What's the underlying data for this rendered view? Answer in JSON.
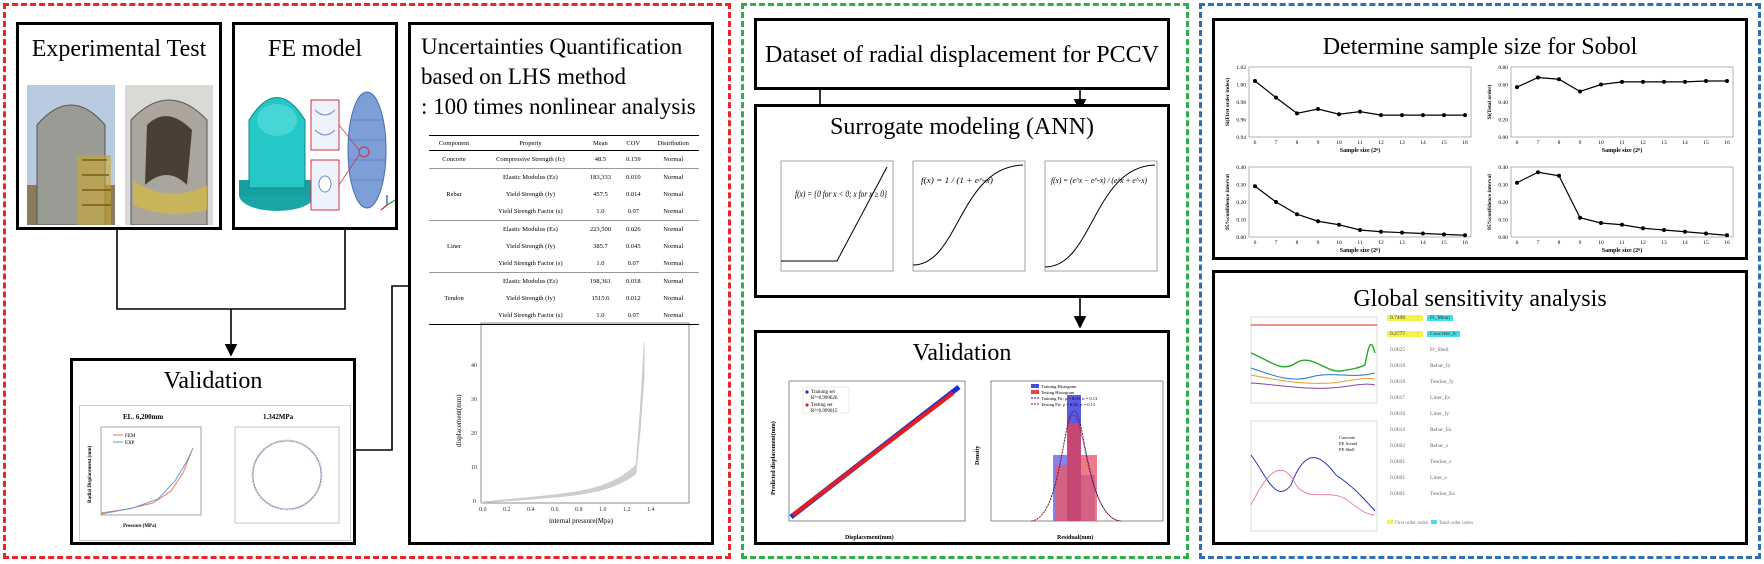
{
  "colors": {
    "red": "#e8262a",
    "green": "#2fae4a",
    "blue": "#2f6fba"
  },
  "boxes": {
    "experimental": "Experimental Test",
    "fe_model": "FE model",
    "validation_left": "Validation",
    "uq_line1": "Uncertainties Quantification",
    "uq_line2": "based on LHS method",
    "uq_line3": ": 100 times nonlinear analysis",
    "dataset": "Dataset of radial displacement for PCCV",
    "surrogate": "Surrogate modeling (ANN)",
    "validation_mid": "Validation",
    "sample_size": "Determine sample size for Sobol",
    "gsa": "Global sensitivity analysis"
  },
  "left_validation": {
    "plot1_title": "EL. 6,200mm",
    "plot1_xlabel": "Pressure (MPa)",
    "plot1_ylabel": "Radial Displacement (mm)",
    "legend": [
      "FEM",
      "EXP"
    ],
    "plot2_title": "1.342MPa"
  },
  "table": {
    "headers": [
      "Component",
      "Property",
      "Mean",
      "COV",
      "Distribution"
    ],
    "rows": [
      [
        "Concrete",
        "Compressive Strength (fc)",
        "48.5",
        "0.159",
        "Normal"
      ],
      [
        "",
        "Elastic Modulus (Es)",
        "183,333",
        "0.010",
        "Normal"
      ],
      [
        "Rebar",
        "Yield Strength (fy)",
        "457.5",
        "0.014",
        "Normal"
      ],
      [
        "",
        "Yield Strength Factor (s)",
        "1.0",
        "0.07",
        "Normal"
      ],
      [
        "",
        "Elastic Modulus (Es)",
        "223,500",
        "0.026",
        "Normal"
      ],
      [
        "Liner",
        "Yield Strength (fy)",
        "385.7",
        "0.045",
        "Normal"
      ],
      [
        "",
        "Yield Strength Factor (s)",
        "1.0",
        "0.07",
        "Normal"
      ],
      [
        "",
        "Elastic Modulus (Es)",
        "198,361",
        "0.018",
        "Normal"
      ],
      [
        "Tendon",
        "Yield Strength (fy)",
        "1515.6",
        "0.012",
        "Normal"
      ],
      [
        "",
        "Yield Strength Factor (s)",
        "1.0",
        "0.07",
        "Normal"
      ]
    ]
  },
  "uq_plot": {
    "xlabel": "internal pressure(Mpa)",
    "ylabel": "displacement(mm)"
  },
  "activation": {
    "relu_formula": "f(x) = {0 for x < 0; x for x ≥ 0}",
    "sigmoid_formula": "f(x) = 1 / (1 + e^-x)",
    "tanh_formula": "f(x) = (e^x − e^-x) / (e^x + e^-x)"
  },
  "mid_validation": {
    "scatter_xlabel": "Displacement(mm)",
    "scatter_ylabel": "Predicted displacement(mm)",
    "legend_train": "Training set",
    "legend_train_r": "R²=0.999626",
    "legend_test": "Testing set",
    "legend_test_r": "R²=0.999615",
    "hist_xlabel": "Residual(mm)",
    "hist_ylabel": "Density",
    "hist_legend": [
      "Training Histogram",
      "Testing Histogram",
      "Training Fit: μ = 0.03, σ = 0.13",
      "Testing Fit: μ = 0.02, σ = 0.13"
    ]
  },
  "sobol": {
    "xlabel": "Sample size (2ⁿ)",
    "ylabel_s1": "Si(First order index)",
    "ylabel_st": "Si(Total order)",
    "ylabel_ci": "95%confidence interval",
    "n": [
      6,
      7,
      8,
      9,
      10,
      11,
      12,
      13,
      14,
      15,
      16
    ],
    "s1": [
      1.004,
      0.985,
      0.967,
      0.972,
      0.966,
      0.969,
      0.965,
      0.965,
      0.965,
      0.965,
      0.965
    ],
    "st": [
      0.57,
      0.68,
      0.66,
      0.52,
      0.6,
      0.63,
      0.63,
      0.63,
      0.63,
      0.64,
      0.64
    ],
    "ci1": [
      0.29,
      0.2,
      0.13,
      0.09,
      0.07,
      0.04,
      0.03,
      0.025,
      0.02,
      0.015,
      0.01
    ],
    "ci2": [
      0.31,
      0.37,
      0.35,
      0.11,
      0.08,
      0.07,
      0.05,
      0.04,
      0.03,
      0.02,
      0.01
    ]
  },
  "gsa_list": [
    {
      "v": "0.7496",
      "n": "Ft_Mean",
      "hl": true
    },
    {
      "v": "0.2777",
      "n": "Concrete_fc",
      "hl": true
    },
    {
      "v": "0.0025",
      "n": "Ft_Shell",
      "hl": false
    },
    {
      "v": "0.0018",
      "n": "Rebar_fy",
      "hl": false
    },
    {
      "v": "0.0018",
      "n": "Tendon_fy",
      "hl": false
    },
    {
      "v": "0.0017",
      "n": "Liner_Es",
      "hl": false
    },
    {
      "v": "0.0016",
      "n": "Liner_fy",
      "hl": false
    },
    {
      "v": "0.0014",
      "n": "Rebar_Es",
      "hl": false
    },
    {
      "v": "0.0002",
      "n": "Rebar_s",
      "hl": false
    },
    {
      "v": "0.0001",
      "n": "Tendon_s",
      "hl": false
    },
    {
      "v": "0.0001",
      "n": "Liner_s",
      "hl": false
    },
    {
      "v": "0.0001",
      "n": "Tendon_Es",
      "hl": false
    }
  ],
  "gsa_legend": [
    "First order index",
    "Total order index"
  ],
  "gsa_lower_legend": [
    "Concrete",
    "FE Actual",
    "FE Shell"
  ]
}
